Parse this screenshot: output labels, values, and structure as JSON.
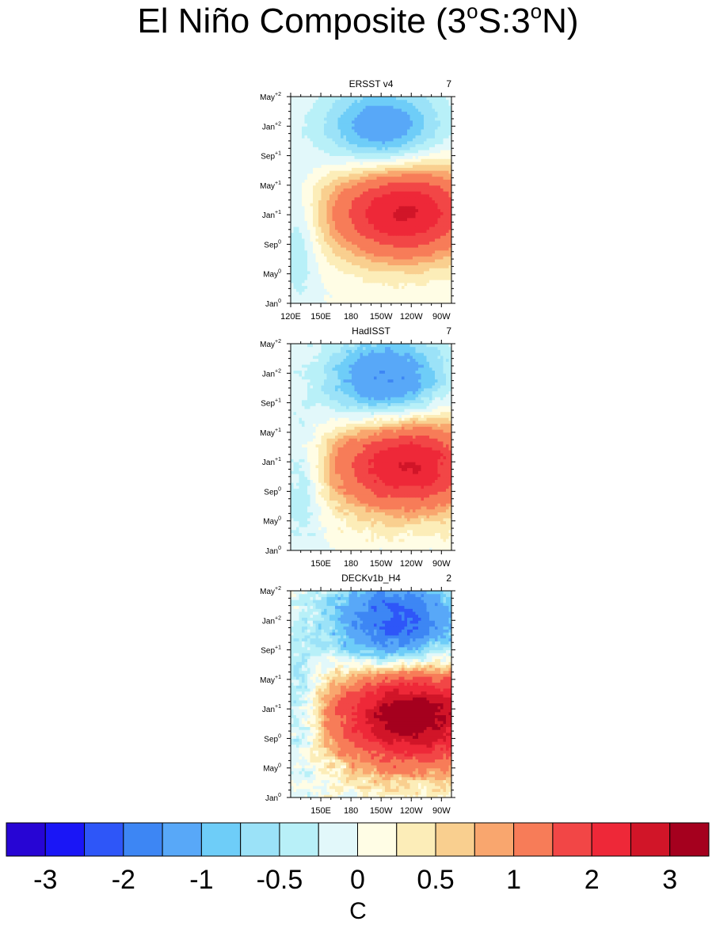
{
  "figure": {
    "title_parts": [
      "El Niño Composite (3",
      "o",
      "S:3",
      "o",
      "N)"
    ]
  },
  "chart_data": [
    {
      "type": "heatmap",
      "title": "ERSST v4",
      "count": "7",
      "y_ticks": [
        {
          "base": "Jan",
          "sup": "0"
        },
        {
          "base": "May",
          "sup": "0"
        },
        {
          "base": "Sep",
          "sup": "0"
        },
        {
          "base": "Jan",
          "sup": "+1"
        },
        {
          "base": "May",
          "sup": "+1"
        },
        {
          "base": "Sep",
          "sup": "+1"
        },
        {
          "base": "Jan",
          "sup": "+2"
        },
        {
          "base": "May",
          "sup": "+2"
        }
      ],
      "x_ticks": [
        {
          "label": "120E",
          "lon": 120
        },
        {
          "label": "150E",
          "lon": 150
        },
        {
          "label": "180",
          "lon": 180
        },
        {
          "label": "150W",
          "lon": 210
        },
        {
          "label": "120W",
          "lon": 240
        },
        {
          "label": "90W",
          "lon": 270
        }
      ],
      "xlim_lon": [
        120,
        280
      ],
      "ylim_month": [
        0,
        28
      ],
      "warm": {
        "amp": 2.6,
        "cx": 232,
        "cy": 12.5,
        "sx": 52,
        "sy": 4.6
      },
      "cold": {
        "amp": -1.4,
        "cx": 212,
        "cy": 23.5,
        "sx": 42,
        "sy": 4.2
      },
      "westcool": {
        "amp": -0.55,
        "cx": 128,
        "cy": 9,
        "sx": 14,
        "sy": 6
      },
      "noise": 0.05
    },
    {
      "type": "heatmap",
      "title": "HadISST",
      "count": "7",
      "y_ticks": [
        {
          "base": "Jan",
          "sup": "0"
        },
        {
          "base": "May",
          "sup": "0"
        },
        {
          "base": "Sep",
          "sup": "0"
        },
        {
          "base": "Jan",
          "sup": "+1"
        },
        {
          "base": "May",
          "sup": "+1"
        },
        {
          "base": "Sep",
          "sup": "+1"
        },
        {
          "base": "Jan",
          "sup": "+2"
        },
        {
          "base": "May",
          "sup": "+2"
        }
      ],
      "x_ticks": [
        {
          "label": "150E",
          "lon": 150
        },
        {
          "label": "180",
          "lon": 180
        },
        {
          "label": "150W",
          "lon": 210
        },
        {
          "label": "120W",
          "lon": 240
        },
        {
          "label": "90W",
          "lon": 270
        }
      ],
      "xlim_lon": [
        120,
        280
      ],
      "ylim_month": [
        0,
        28
      ],
      "warm": {
        "amp": 2.6,
        "cx": 235,
        "cy": 11.8,
        "sx": 52,
        "sy": 4.6
      },
      "cold": {
        "amp": -1.6,
        "cx": 215,
        "cy": 22.8,
        "sx": 42,
        "sy": 4.4
      },
      "westcool": {
        "amp": -0.6,
        "cx": 132,
        "cy": 9,
        "sx": 14,
        "sy": 6
      },
      "noise": 0.15
    },
    {
      "type": "heatmap",
      "title": "DECKv1b_H4",
      "count": "2",
      "y_ticks": [
        {
          "base": "Jan",
          "sup": "0"
        },
        {
          "base": "May",
          "sup": "0"
        },
        {
          "base": "Sep",
          "sup": "0"
        },
        {
          "base": "Jan",
          "sup": "+1"
        },
        {
          "base": "May",
          "sup": "+1"
        },
        {
          "base": "Sep",
          "sup": "+1"
        },
        {
          "base": "Jan",
          "sup": "+2"
        },
        {
          "base": "May",
          "sup": "+2"
        }
      ],
      "x_ticks": [
        {
          "label": "150E",
          "lon": 150
        },
        {
          "label": "180",
          "lon": 180
        },
        {
          "label": "150W",
          "lon": 210
        },
        {
          "label": "120W",
          "lon": 240
        },
        {
          "label": "90W",
          "lon": 270
        }
      ],
      "xlim_lon": [
        120,
        280
      ],
      "ylim_month": [
        0,
        28
      ],
      "warm": {
        "amp": 3.6,
        "cx": 240,
        "cy": 11.2,
        "sx": 55,
        "sy": 4.8
      },
      "cold": {
        "amp": -2.3,
        "cx": 225,
        "cy": 23.5,
        "sx": 45,
        "sy": 4.5
      },
      "westcool": {
        "amp": -0.7,
        "cx": 130,
        "cy": 12,
        "sx": 14,
        "sy": 6
      },
      "noise": 0.35
    }
  ],
  "colorbar": {
    "title": "C",
    "levels": [
      -3,
      -2.5,
      -2,
      -1.5,
      -1,
      -0.75,
      -0.5,
      -0.25,
      0,
      0.25,
      0.5,
      0.75,
      1,
      1.5,
      2,
      2.5,
      3
    ],
    "colors": [
      "#2705d4",
      "#1a16f6",
      "#2e56f8",
      "#3d86f4",
      "#58a8f8",
      "#6ecdf8",
      "#9be2f8",
      "#b8f0f8",
      "#e2f8fa",
      "#fffde5",
      "#fcedb8",
      "#f9cf8f",
      "#f9a66e",
      "#f77c58",
      "#f24646",
      "#ee2838",
      "#d11528",
      "#a5001e"
    ],
    "labels": [
      {
        "text": "-3",
        "level": -3
      },
      {
        "text": "-2",
        "level": -2
      },
      {
        "text": "-1",
        "level": -1
      },
      {
        "text": "-0.5",
        "level": -0.5
      },
      {
        "text": "0",
        "level": 0
      },
      {
        "text": "0.5",
        "level": 0.5
      },
      {
        "text": "1",
        "level": 1
      },
      {
        "text": "2",
        "level": 2
      },
      {
        "text": "3",
        "level": 3
      }
    ]
  }
}
